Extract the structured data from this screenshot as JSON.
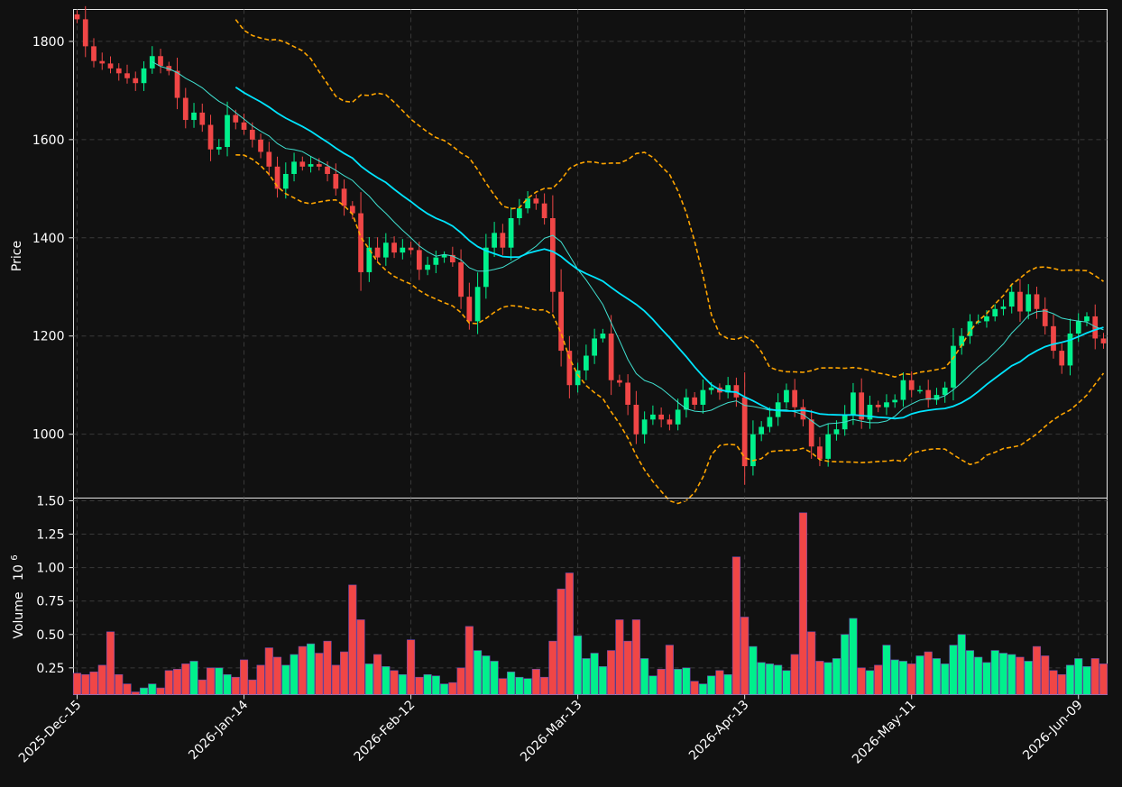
{
  "chart_data": {
    "type": "candlestick",
    "price_panel": {
      "ylabel": "Price",
      "ylim": [
        870,
        1865
      ],
      "yticks": [
        1000,
        1200,
        1400,
        1600,
        1800
      ],
      "grid": true
    },
    "volume_panel": {
      "ylabel": "Volume",
      "ylabel_exponent": "10",
      "ylabel_power": "6",
      "ylim": [
        0.05,
        1.52
      ],
      "yticks": [
        0.25,
        0.5,
        0.75,
        1.0,
        1.25,
        1.5
      ],
      "ytick_labels": [
        "0.25",
        "0.50",
        "0.75",
        "1.00",
        "1.25",
        "1.50"
      ],
      "grid": true
    },
    "xtick_labels": [
      {
        "index": 0,
        "label": "2025-Dec-15"
      },
      {
        "index": 20,
        "label": "2026-Jan-14"
      },
      {
        "index": 40,
        "label": "2026-Feb-12"
      },
      {
        "index": 60,
        "label": "2026-Mar-13"
      },
      {
        "index": 80,
        "label": "2026-Apr-13"
      },
      {
        "index": 100,
        "label": "2026-May-11"
      },
      {
        "index": 120,
        "label": "2026-Jun-09"
      }
    ],
    "colors": {
      "up": "#00f08c",
      "down": "#f04646",
      "sma_fast": "#40e0d0",
      "sma_slow": "#00e5ff",
      "bands": "#ffa500",
      "background": "#111111"
    },
    "closes": [
      1845,
      1790,
      1760,
      1755,
      1745,
      1735,
      1725,
      1715,
      1745,
      1770,
      1750,
      1740,
      1685,
      1640,
      1655,
      1630,
      1580,
      1585,
      1650,
      1635,
      1620,
      1600,
      1575,
      1545,
      1500,
      1530,
      1555,
      1545,
      1550,
      1545,
      1530,
      1500,
      1465,
      1450,
      1330,
      1380,
      1360,
      1390,
      1370,
      1380,
      1375,
      1335,
      1345,
      1360,
      1365,
      1350,
      1280,
      1230,
      1300,
      1380,
      1410,
      1380,
      1440,
      1460,
      1480,
      1470,
      1440,
      1290,
      1170,
      1100,
      1130,
      1160,
      1195,
      1205,
      1110,
      1105,
      1060,
      1000,
      1030,
      1040,
      1030,
      1020,
      1050,
      1075,
      1060,
      1090,
      1095,
      1085,
      1100,
      1075,
      935,
      1000,
      1015,
      1035,
      1065,
      1090,
      1055,
      1030,
      975,
      950,
      1000,
      1010,
      1040,
      1085,
      1030,
      1060,
      1055,
      1065,
      1070,
      1110,
      1090,
      1090,
      1070,
      1080,
      1095,
      1180,
      1200,
      1230,
      1230,
      1240,
      1255,
      1260,
      1290,
      1250,
      1285,
      1255,
      1220,
      1170,
      1140,
      1205,
      1230,
      1240,
      1195,
      1185
    ],
    "volumes_millions": [
      0.21,
      0.2,
      0.22,
      0.27,
      0.52,
      0.2,
      0.13,
      0.07,
      0.1,
      0.13,
      0.1,
      0.23,
      0.24,
      0.28,
      0.3,
      0.16,
      0.25,
      0.25,
      0.2,
      0.18,
      0.31,
      0.16,
      0.27,
      0.4,
      0.33,
      0.27,
      0.35,
      0.41,
      0.43,
      0.36,
      0.45,
      0.27,
      0.37,
      0.87,
      0.61,
      0.28,
      0.35,
      0.26,
      0.23,
      0.2,
      0.46,
      0.18,
      0.2,
      0.19,
      0.13,
      0.14,
      0.25,
      0.56,
      0.38,
      0.34,
      0.3,
      0.17,
      0.22,
      0.18,
      0.17,
      0.24,
      0.18,
      0.45,
      0.84,
      0.96,
      0.49,
      0.32,
      0.36,
      0.26,
      0.38,
      0.61,
      0.45,
      0.61,
      0.32,
      0.19,
      0.24,
      0.42,
      0.24,
      0.25,
      0.15,
      0.13,
      0.19,
      0.23,
      0.2,
      1.08,
      0.63,
      0.41,
      0.29,
      0.28,
      0.27,
      0.23,
      0.35,
      1.41,
      0.52,
      0.3,
      0.29,
      0.32,
      0.5,
      0.62,
      0.25,
      0.23,
      0.27,
      0.42,
      0.31,
      0.3,
      0.28,
      0.34,
      0.37,
      0.32,
      0.28,
      0.42,
      0.5,
      0.38,
      0.33,
      0.29,
      0.38,
      0.36,
      0.35,
      0.33,
      0.3,
      0.41,
      0.34,
      0.23,
      0.2,
      0.27,
      0.32,
      0.26,
      0.32,
      0.28
    ]
  }
}
